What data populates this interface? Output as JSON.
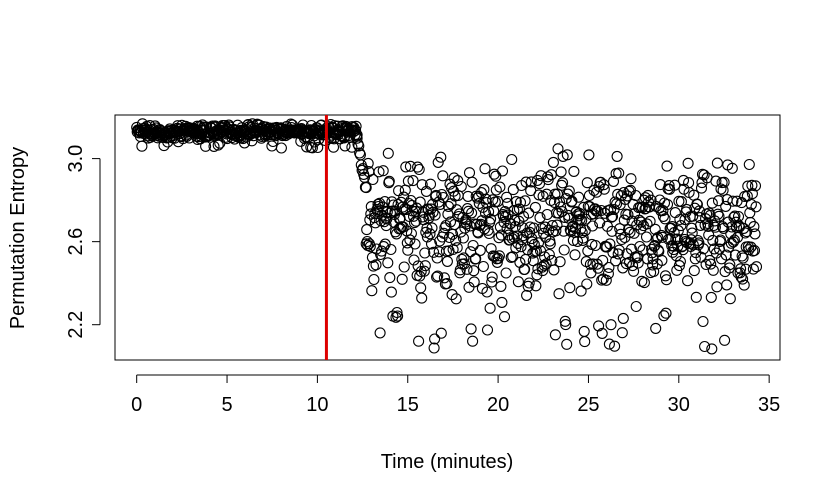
{
  "chart_data": {
    "type": "scatter",
    "title": "",
    "xlabel": "Time (minutes)",
    "ylabel": "Permutation Entropy",
    "xlim": [
      -1.2,
      35.6
    ],
    "ylim": [
      2.03,
      3.21
    ],
    "x_ticks": [
      0,
      5,
      10,
      15,
      20,
      25,
      30,
      35
    ],
    "x_tick_labels": [
      "0",
      "5",
      "10",
      "15",
      "20",
      "25",
      "30",
      "35"
    ],
    "y_ticks": [
      2.2,
      2.6,
      3.0
    ],
    "y_tick_labels": [
      "2.2",
      "2.6",
      "3.0"
    ],
    "grid": false,
    "legend": "none",
    "marker": "open-circle",
    "marker_color": "#000000",
    "change_line": {
      "x": 10.5,
      "color": "#dd0000"
    },
    "phases": [
      {
        "x_start": 0.0,
        "x_end": 12.2,
        "n": 420,
        "y_min": 3.05,
        "y_max": 3.17,
        "y_center": 3.13
      },
      {
        "x_start": 12.2,
        "x_end": 12.7,
        "n": 12,
        "y_min": 2.85,
        "y_max": 3.1,
        "y_center": 2.98
      },
      {
        "x_start": 12.7,
        "x_end": 34.3,
        "n": 760,
        "y_min": 2.08,
        "y_max": 3.14,
        "y_center": 2.74
      }
    ]
  }
}
